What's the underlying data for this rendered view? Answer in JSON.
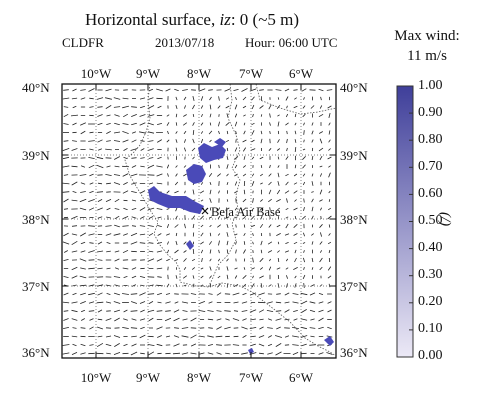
{
  "title": {
    "prefix": "Horizontal surface, ",
    "var": "iz",
    "suffix": ": 0 (~5 m)"
  },
  "model": "CLDFR",
  "date": "2013/07/18",
  "hour": "Hour: 06:00 UTC",
  "location_label": "Beja Air Base",
  "lon_ticks": [
    "10°W",
    "9°W",
    "8°W",
    "7°W",
    "6°W"
  ],
  "lat_ticks": [
    "40°N",
    "39°N",
    "38°N",
    "37°N",
    "36°N"
  ],
  "colorbar": {
    "title_line1": "Max wind:",
    "title_line2": "11 m/s",
    "unit": "(/)",
    "ticks": [
      "1.00",
      "0.90",
      "0.80",
      "0.70",
      "0.60",
      "0.50",
      "0.40",
      "0.30",
      "0.20",
      "0.10",
      "0.00"
    ],
    "low_color": "#ece9f6",
    "high_color": "#3f3f9a"
  },
  "cloud_color": "#4a4ab8"
}
